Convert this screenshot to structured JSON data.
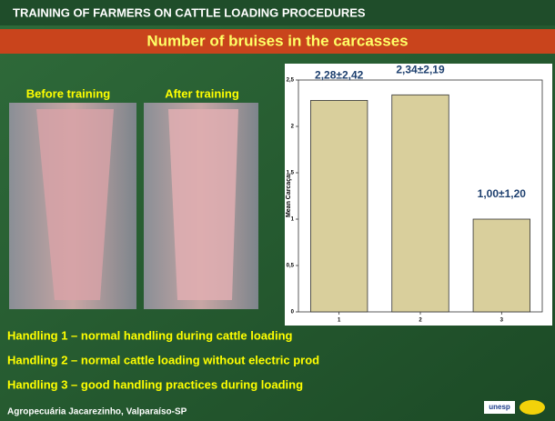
{
  "header": {
    "title": "TRAINING OF FARMERS ON CATTLE LOADING PROCEDURES",
    "subtitle": "Number of bruises in the carcasses"
  },
  "photos": [
    "Before training",
    "After training"
  ],
  "notes": [
    "Handling 1 – normal handling during cattle loading",
    "Handling 2 – normal cattle loading without electric prod",
    "Handling 3 – good handling practices during loading"
  ],
  "footer": "Agropecuária Jacarezinho, Valparaíso-SP",
  "logo": "unesp",
  "chart_data": {
    "type": "bar",
    "y_label": "Mean Carcaça",
    "categories": [
      "1",
      "2",
      "3"
    ],
    "values": [
      2.28,
      2.34,
      1.0
    ],
    "value_labels": [
      "2,28±2,42",
      "2,34±2,19",
      "1,00±1,20"
    ],
    "color": "#d9cf9c",
    "ylim": [
      0,
      2.5
    ],
    "yticks": [
      0,
      {
        "value": 0.5,
        "label": "0,5"
      },
      1,
      {
        "value": 1.5,
        "label": "1,5"
      },
      2,
      {
        "value": 2.5,
        "label": "2,5"
      }
    ]
  }
}
